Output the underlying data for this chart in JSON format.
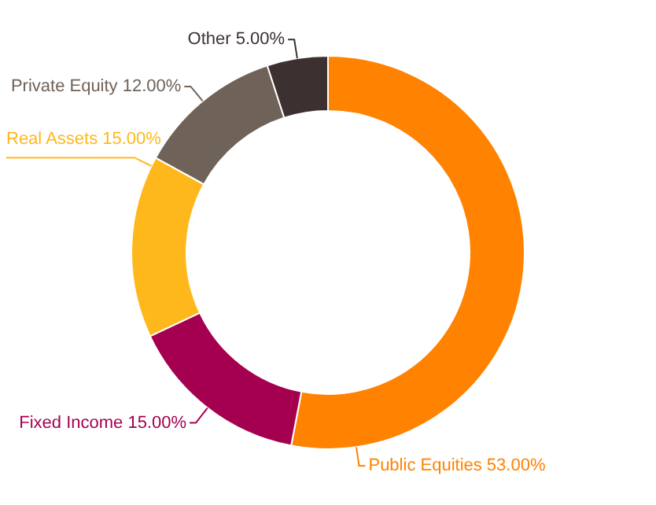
{
  "chart_data": {
    "type": "donut",
    "categories": [
      "Public Equities",
      "Fixed Income",
      "Real Assets",
      "Private Equity",
      "Other"
    ],
    "values": [
      53,
      15,
      15,
      12,
      5
    ],
    "value_labels": [
      "53.00%",
      "15.00%",
      "15.00%",
      "12.00%",
      "5.00%"
    ],
    "colors": [
      "#ff8200",
      "#a50050",
      "#ffb81c",
      "#6f6258",
      "#3d3030"
    ],
    "legend": false
  }
}
